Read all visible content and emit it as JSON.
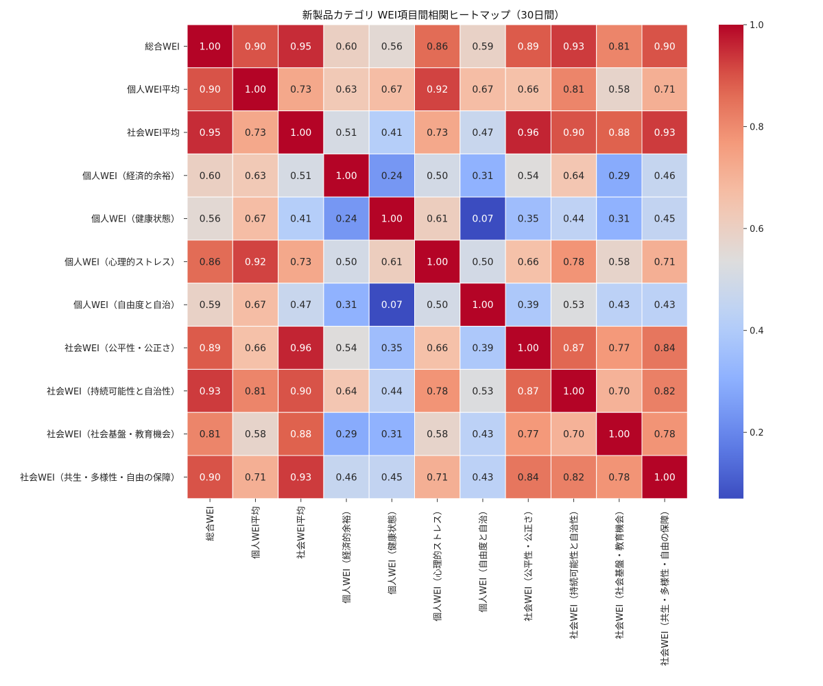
{
  "chart_data": {
    "type": "heatmap",
    "title": "新製品カテゴリ WEI項目間相関ヒートマップ（30日間）",
    "labels": [
      "総合WEI",
      "個人WEI平均",
      "社会WEI平均",
      "個人WEI（経済的余裕）",
      "個人WEI（健康状態）",
      "個人WEI（心理的ストレス）",
      "個人WEI（自由度と自治）",
      "社会WEI（公平性・公正さ）",
      "社会WEI（持続可能性と自治性）",
      "社会WEI（社会基盤・教育機会）",
      "社会WEI（共生・多様性・自由の保障）"
    ],
    "values": [
      [
        1.0,
        0.9,
        0.95,
        0.6,
        0.56,
        0.86,
        0.59,
        0.89,
        0.93,
        0.81,
        0.9
      ],
      [
        0.9,
        1.0,
        0.73,
        0.63,
        0.67,
        0.92,
        0.67,
        0.66,
        0.81,
        0.58,
        0.71
      ],
      [
        0.95,
        0.73,
        1.0,
        0.51,
        0.41,
        0.73,
        0.47,
        0.96,
        0.9,
        0.88,
        0.93
      ],
      [
        0.6,
        0.63,
        0.51,
        1.0,
        0.24,
        0.5,
        0.31,
        0.54,
        0.64,
        0.29,
        0.46
      ],
      [
        0.56,
        0.67,
        0.41,
        0.24,
        1.0,
        0.61,
        0.07,
        0.35,
        0.44,
        0.31,
        0.45
      ],
      [
        0.86,
        0.92,
        0.73,
        0.5,
        0.61,
        1.0,
        0.5,
        0.66,
        0.78,
        0.58,
        0.71
      ],
      [
        0.59,
        0.67,
        0.47,
        0.31,
        0.07,
        0.5,
        1.0,
        0.39,
        0.53,
        0.43,
        0.43
      ],
      [
        0.89,
        0.66,
        0.96,
        0.54,
        0.35,
        0.66,
        0.39,
        1.0,
        0.87,
        0.77,
        0.84
      ],
      [
        0.93,
        0.81,
        0.9,
        0.64,
        0.44,
        0.78,
        0.53,
        0.87,
        1.0,
        0.7,
        0.82
      ],
      [
        0.81,
        0.58,
        0.88,
        0.29,
        0.31,
        0.58,
        0.43,
        0.77,
        0.7,
        1.0,
        0.78
      ],
      [
        0.9,
        0.71,
        0.93,
        0.46,
        0.45,
        0.71,
        0.43,
        0.84,
        0.82,
        0.78,
        1.0
      ]
    ],
    "colormap": "coolwarm",
    "vmin": 0.07,
    "vmax": 1.0,
    "colorbar_ticks": [
      "0.2",
      "0.4",
      "0.6",
      "0.8",
      "1.0"
    ],
    "colorbar_tick_values": [
      0.2,
      0.4,
      0.6,
      0.8,
      1.0
    ]
  }
}
